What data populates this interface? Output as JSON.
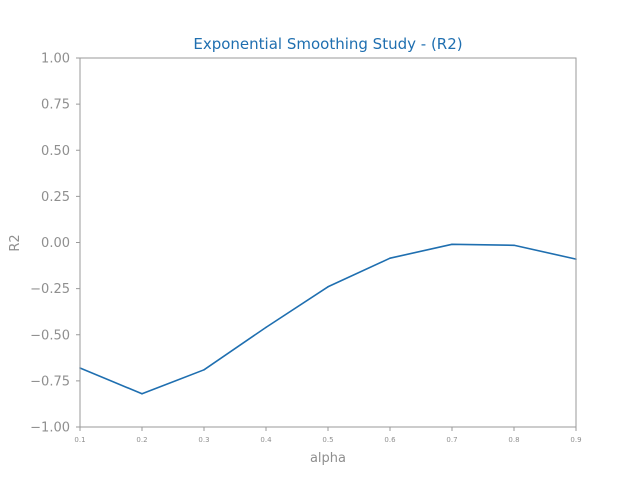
{
  "colors": {
    "title": "#1f6fb0",
    "series": "#1f6fb0",
    "axis_text": "#8f8f8f",
    "spine": "#9a9a9a"
  },
  "chart_data": {
    "type": "line",
    "title": "Exponential Smoothing Study - (R2)",
    "xlabel": "alpha",
    "ylabel": "R2",
    "xlim": [
      0.1,
      0.9
    ],
    "ylim": [
      -1.0,
      1.0
    ],
    "grid": false,
    "x": [
      0.1,
      0.2,
      0.3,
      0.4,
      0.5,
      0.6,
      0.7,
      0.8,
      0.9
    ],
    "x_tick_labels": [
      "0.1",
      "0.2",
      "0.3",
      "0.4",
      "0.5",
      "0.6",
      "0.7",
      "0.8",
      "0.9"
    ],
    "y_ticks": [
      -1.0,
      -0.75,
      -0.5,
      -0.25,
      0.0,
      0.25,
      0.5,
      0.75,
      1.0
    ],
    "y_tick_labels": [
      "−1.00",
      "−0.75",
      "−0.50",
      "−0.25",
      "0.00",
      "0.25",
      "0.50",
      "0.75",
      "1.00"
    ],
    "series": [
      {
        "values": [
          -0.68,
          -0.82,
          -0.69,
          -0.46,
          -0.24,
          -0.085,
          -0.01,
          -0.015,
          -0.09
        ]
      }
    ]
  }
}
